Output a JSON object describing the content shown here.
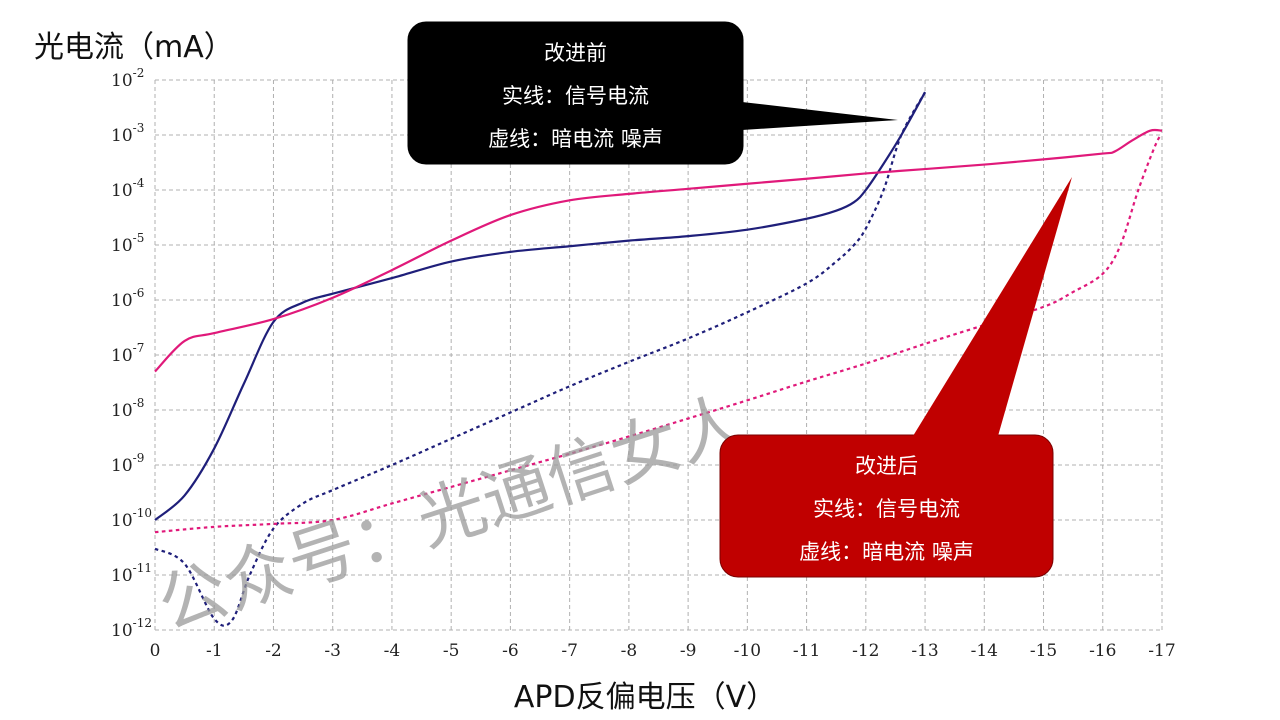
{
  "chart_data": {
    "type": "line",
    "ylabel": "光电流（mA）",
    "xlabel": "APD反偏电压（V）",
    "yscale": "log",
    "ylim": [
      1e-12,
      0.01
    ],
    "xlim": [
      0,
      -17
    ],
    "x_ticks": [
      "0",
      "-1",
      "-2",
      "-3",
      "-4",
      "-5",
      "-6",
      "-7",
      "-8",
      "-9",
      "-10",
      "-11",
      "-12",
      "-13",
      "-14",
      "-15",
      "-16",
      "-17"
    ],
    "y_ticks": [
      {
        "base": "10",
        "exp": "-12"
      },
      {
        "base": "10",
        "exp": "-11"
      },
      {
        "base": "10",
        "exp": "-10"
      },
      {
        "base": "10",
        "exp": "-9"
      },
      {
        "base": "10",
        "exp": "-8"
      },
      {
        "base": "10",
        "exp": "-7"
      },
      {
        "base": "10",
        "exp": "-6"
      },
      {
        "base": "10",
        "exp": "-5"
      },
      {
        "base": "10",
        "exp": "-4"
      },
      {
        "base": "10",
        "exp": "-3"
      },
      {
        "base": "10",
        "exp": "-2"
      }
    ],
    "grid": true,
    "series": [
      {
        "color": "#1f1f7a",
        "style": "solid",
        "x": [
          0,
          -0.5,
          -1,
          -1.5,
          -2,
          -2.5,
          -3,
          -4,
          -5,
          -6,
          -7,
          -8,
          -9,
          -10,
          -11,
          -11.5,
          -11.8,
          -12,
          -12.3,
          -12.6,
          -13
        ],
        "y": [
          1e-10,
          2.8e-10,
          2e-09,
          3e-08,
          4e-07,
          9e-07,
          1.3e-06,
          2.5e-06,
          5e-06,
          7.5e-06,
          9.5e-06,
          1.2e-05,
          1.45e-05,
          1.9e-05,
          3e-05,
          4.2e-05,
          6e-05,
          0.0001,
          0.0003,
          0.001,
          0.006
        ]
      },
      {
        "color": "#1f1f7a",
        "style": "dashed",
        "x": [
          0,
          -0.5,
          -1,
          -1.3,
          -1.6,
          -2,
          -2.5,
          -3,
          -4,
          -5,
          -6,
          -7,
          -8,
          -9,
          -10,
          -11,
          -11.5,
          -11.8,
          -12,
          -12.3,
          -12.6,
          -13
        ],
        "y": [
          3e-11,
          1.6e-11,
          1.6e-12,
          1.5e-12,
          1e-11,
          7e-11,
          2e-10,
          3.5e-10,
          1e-09,
          3e-09,
          9e-09,
          2.7e-08,
          7.5e-08,
          2e-07,
          6e-07,
          2e-06,
          5e-06,
          1e-05,
          2e-05,
          0.0001,
          0.001,
          0.006
        ]
      },
      {
        "color": "#e0197a",
        "style": "solid",
        "x": [
          0,
          -0.5,
          -1,
          -2,
          -3,
          -4,
          -5,
          -6,
          -7,
          -8,
          -9,
          -10,
          -11,
          -12,
          -13,
          -14,
          -15,
          -16,
          -16.2,
          -16.5,
          -16.8,
          -17
        ],
        "y": [
          5e-08,
          1.8e-07,
          2.5e-07,
          4.5e-07,
          1.1e-06,
          3.5e-06,
          1.2e-05,
          3.5e-05,
          6.5e-05,
          8.5e-05,
          0.000105,
          0.00013,
          0.00016,
          0.0002,
          0.00024,
          0.00029,
          0.00036,
          0.00046,
          0.0005,
          0.0008,
          0.0012,
          0.0012
        ]
      },
      {
        "color": "#e0197a",
        "style": "dashed",
        "x": [
          0,
          -1,
          -2,
          -3,
          -4,
          -5,
          -6,
          -7,
          -8,
          -9,
          -10,
          -11,
          -12,
          -13,
          -14,
          -15,
          -15.5,
          -16,
          -16.3,
          -16.6,
          -16.9,
          -17
        ],
        "y": [
          6e-11,
          7.5e-11,
          8.5e-11,
          1e-10,
          2e-10,
          4e-10,
          8e-10,
          1.6e-09,
          3.3e-09,
          7e-09,
          1.5e-08,
          3.3e-08,
          7e-08,
          1.6e-07,
          3.5e-07,
          7.5e-07,
          1.4e-06,
          3e-06,
          1e-05,
          0.0001,
          0.0007,
          0.001
        ]
      }
    ],
    "annotations": [
      {
        "lines": [
          "改进前",
          "实线：信号电流",
          "虚线：暗电流 噪声"
        ],
        "fill": "#000000"
      },
      {
        "lines": [
          "改进后",
          "实线：信号电流",
          "虚线：暗电流 噪声"
        ],
        "fill": "#c00000"
      }
    ],
    "watermark": "公众号：光通信女人"
  }
}
